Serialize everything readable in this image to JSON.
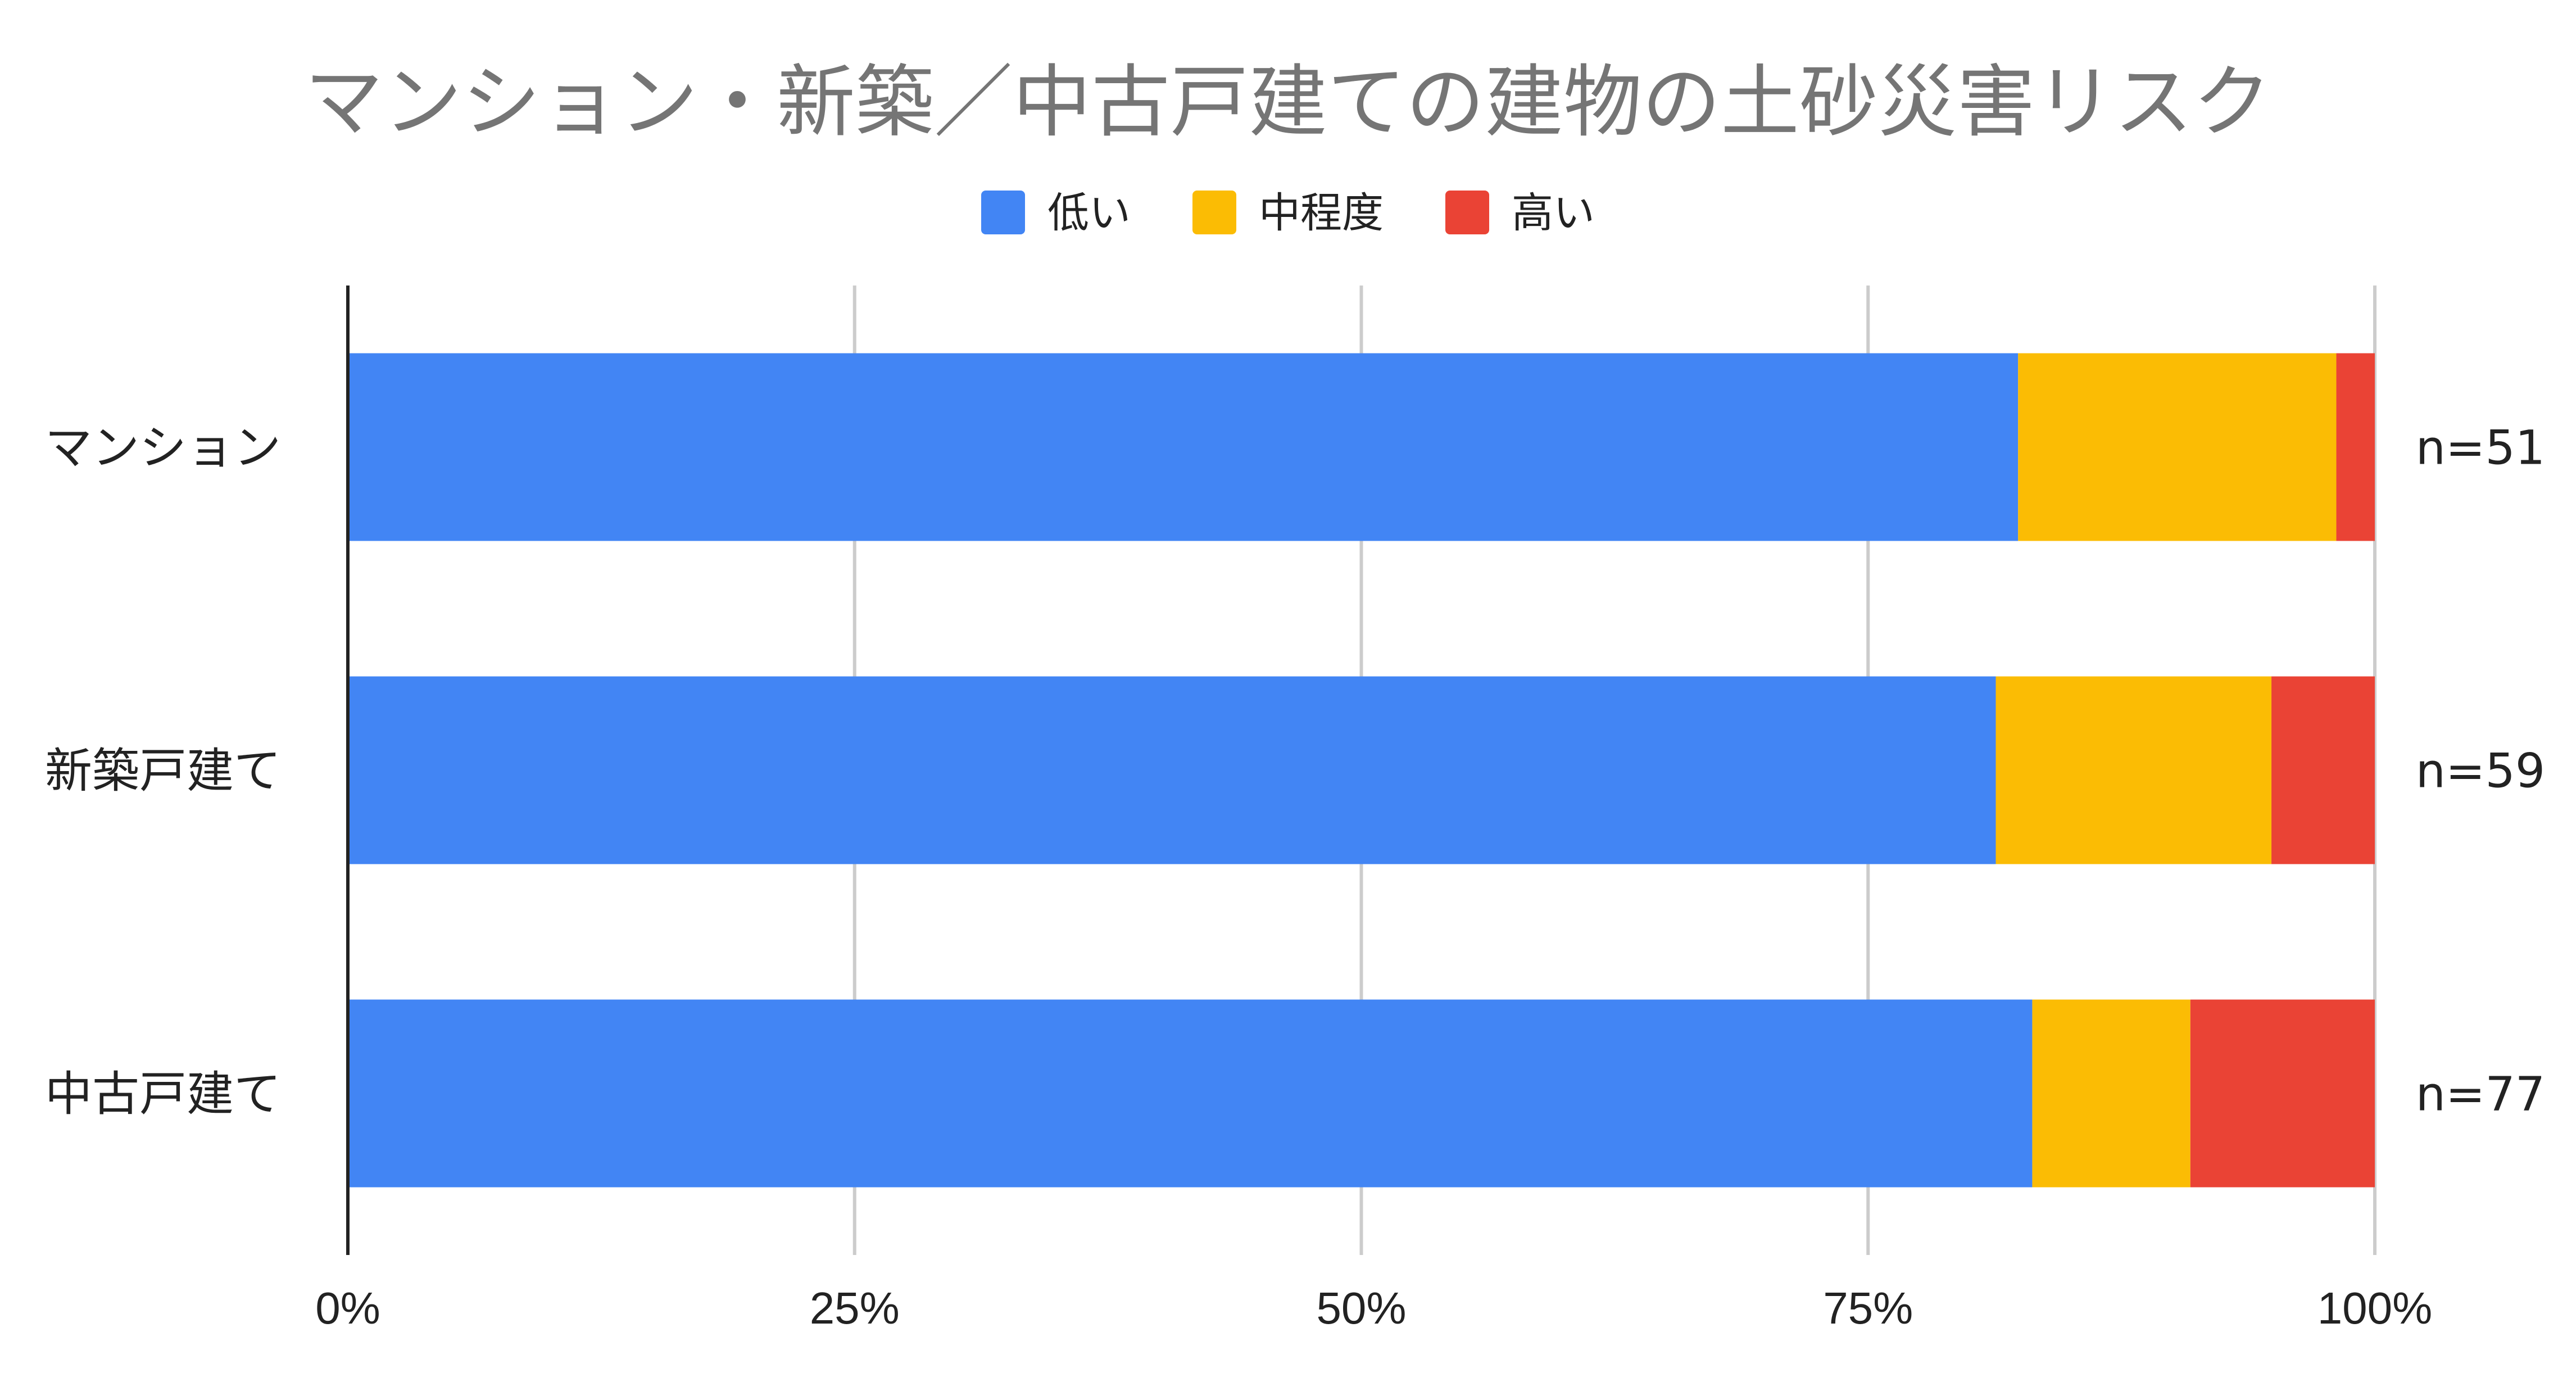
{
  "chart_data": {
    "type": "bar",
    "orientation": "horizontal",
    "stacked": "percent",
    "title": "マンション・新築／中古戸建ての建物の土砂災害リスク",
    "categories": [
      "マンション",
      "新築戸建て",
      "中古戸建て"
    ],
    "annotations": [
      "n=51",
      "n=59",
      "n=77"
    ],
    "series": [
      {
        "name": "低い",
        "color": "#4285F4",
        "values": [
          82.4,
          81.3,
          83.1
        ]
      },
      {
        "name": "中程度",
        "color": "#FBBC04",
        "values": [
          15.7,
          13.6,
          7.8
        ]
      },
      {
        "name": "高い",
        "color": "#EA4335",
        "values": [
          1.9,
          5.1,
          9.1
        ]
      }
    ],
    "xlim": [
      0,
      100
    ],
    "x_ticks": [
      "0%",
      "25%",
      "50%",
      "75%",
      "100%"
    ],
    "xlabel": "",
    "ylabel": "",
    "legend_position": "top",
    "grid": true
  }
}
